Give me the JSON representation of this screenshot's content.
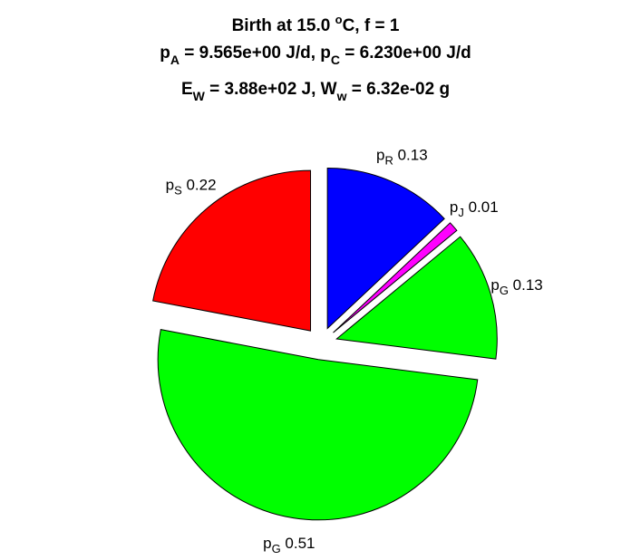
{
  "chart_data": {
    "type": "pie",
    "title": {
      "line1": {
        "before": "Birth at 15.0 ",
        "sup": "o",
        "after": "C, f = 1"
      },
      "line2": {
        "a": "p",
        "a_sub": "A",
        "b": " = 9.565e+00 J/d, p",
        "b_sub": "C",
        "c": " = 6.230e+00 J/d"
      },
      "line3": {
        "a": "E",
        "a_sub": "W",
        "b": " = 3.88e+02 J, W",
        "b_sub": "w",
        "c": " = 6.32e-02 g"
      }
    },
    "slices": [
      {
        "name": "p",
        "sub": "R",
        "label_value": "0.13",
        "value": 0.13,
        "color": "#0000ff",
        "exploded": true
      },
      {
        "name": "p",
        "sub": "J",
        "label_value": "0.01",
        "value": 0.01,
        "color": "#ff00ff",
        "exploded": true
      },
      {
        "name": "p",
        "sub": "G",
        "label_value": "0.13",
        "value": 0.13,
        "color": "#00ff00",
        "exploded": true
      },
      {
        "name": "p",
        "sub": "G",
        "label_value": "0.51",
        "value": 0.51,
        "color": "#00ff00",
        "exploded": true
      },
      {
        "name": "p",
        "sub": "S",
        "label_value": "0.22",
        "value": 0.22,
        "color": "#ff0000",
        "exploded": true
      }
    ],
    "start_angle": "12 o'clock",
    "direction": "clockwise"
  }
}
